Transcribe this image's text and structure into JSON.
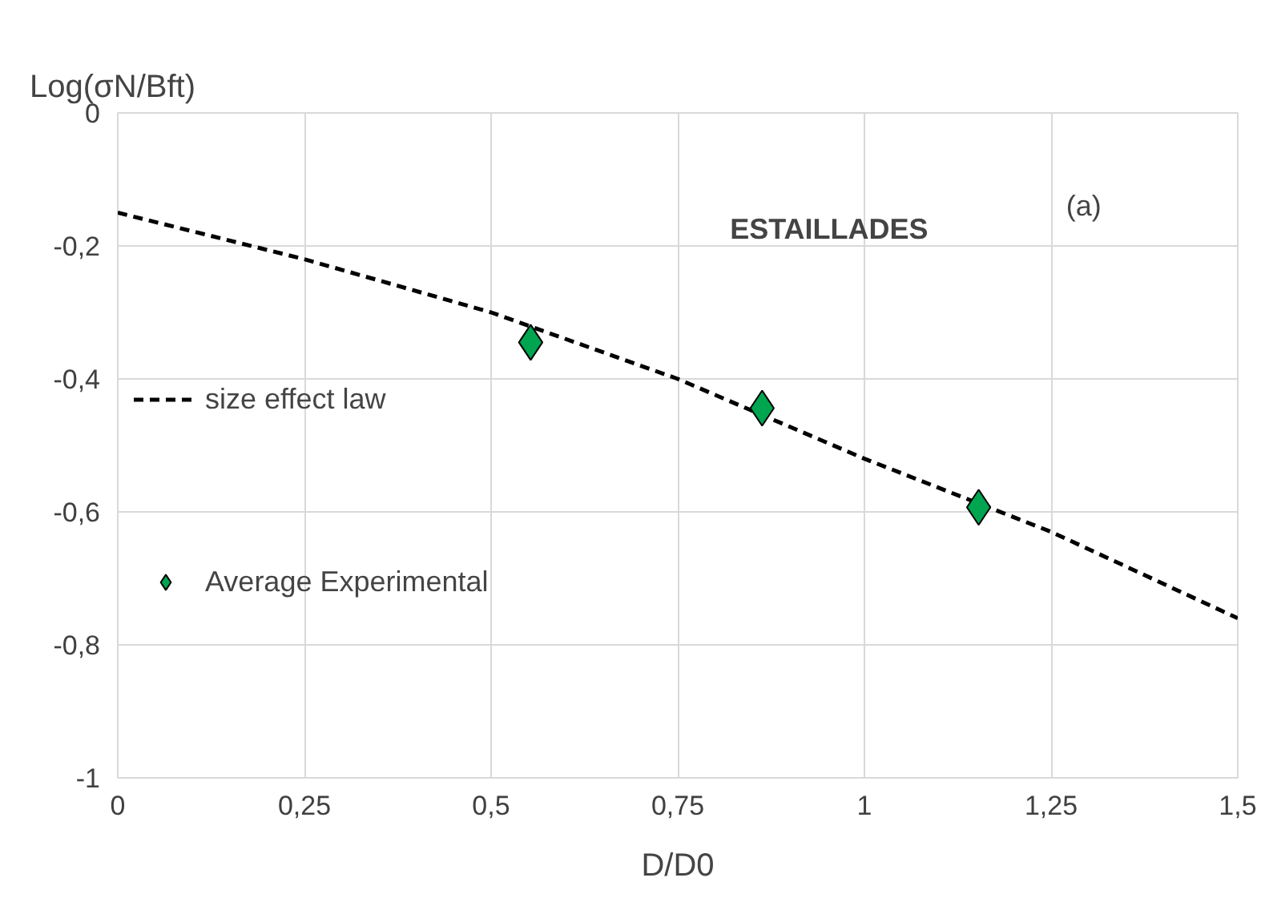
{
  "chart_data": {
    "type": "line",
    "xlabel": "D/D0",
    "ylabel": "Log(σN/Bft)",
    "annotations": [
      "ESTAILLADES",
      "(a)"
    ],
    "series": [
      {
        "name": "size effect law",
        "color": "#000000",
        "line_style": "dashed",
        "marker": "none",
        "x": [
          0,
          0.25,
          0.5,
          0.75,
          1.0,
          1.25,
          1.5
        ],
        "values": [
          -0.15,
          -0.22,
          -0.3,
          -0.4,
          -0.52,
          -0.63,
          -0.76
        ]
      },
      {
        "name": "Average Experimental",
        "type": "scatter",
        "color": "#00a550",
        "marker": "diamond",
        "x": [
          0.553,
          0.863,
          1.153
        ],
        "values": [
          -0.345,
          -0.444,
          -0.593
        ]
      }
    ],
    "xlim": [
      0,
      1.5
    ],
    "xticks": [
      {
        "value": 0,
        "label": "0"
      },
      {
        "value": 0.25,
        "label": "0,25"
      },
      {
        "value": 0.5,
        "label": "0,5"
      },
      {
        "value": 0.75,
        "label": "0,75"
      },
      {
        "value": 1,
        "label": "1"
      },
      {
        "value": 1.25,
        "label": "1,25"
      },
      {
        "value": 1.5,
        "label": "1,5"
      }
    ],
    "ylim": [
      -1,
      0
    ],
    "yticks": [
      {
        "value": -1,
        "label": "-1"
      },
      {
        "value": -0.8,
        "label": "-0,8"
      },
      {
        "value": -0.6,
        "label": "-0,6"
      },
      {
        "value": -0.4,
        "label": "-0,4"
      },
      {
        "value": -0.2,
        "label": "-0,2"
      },
      {
        "value": 0,
        "label": "0"
      }
    ],
    "grid": true,
    "legend": "left"
  }
}
